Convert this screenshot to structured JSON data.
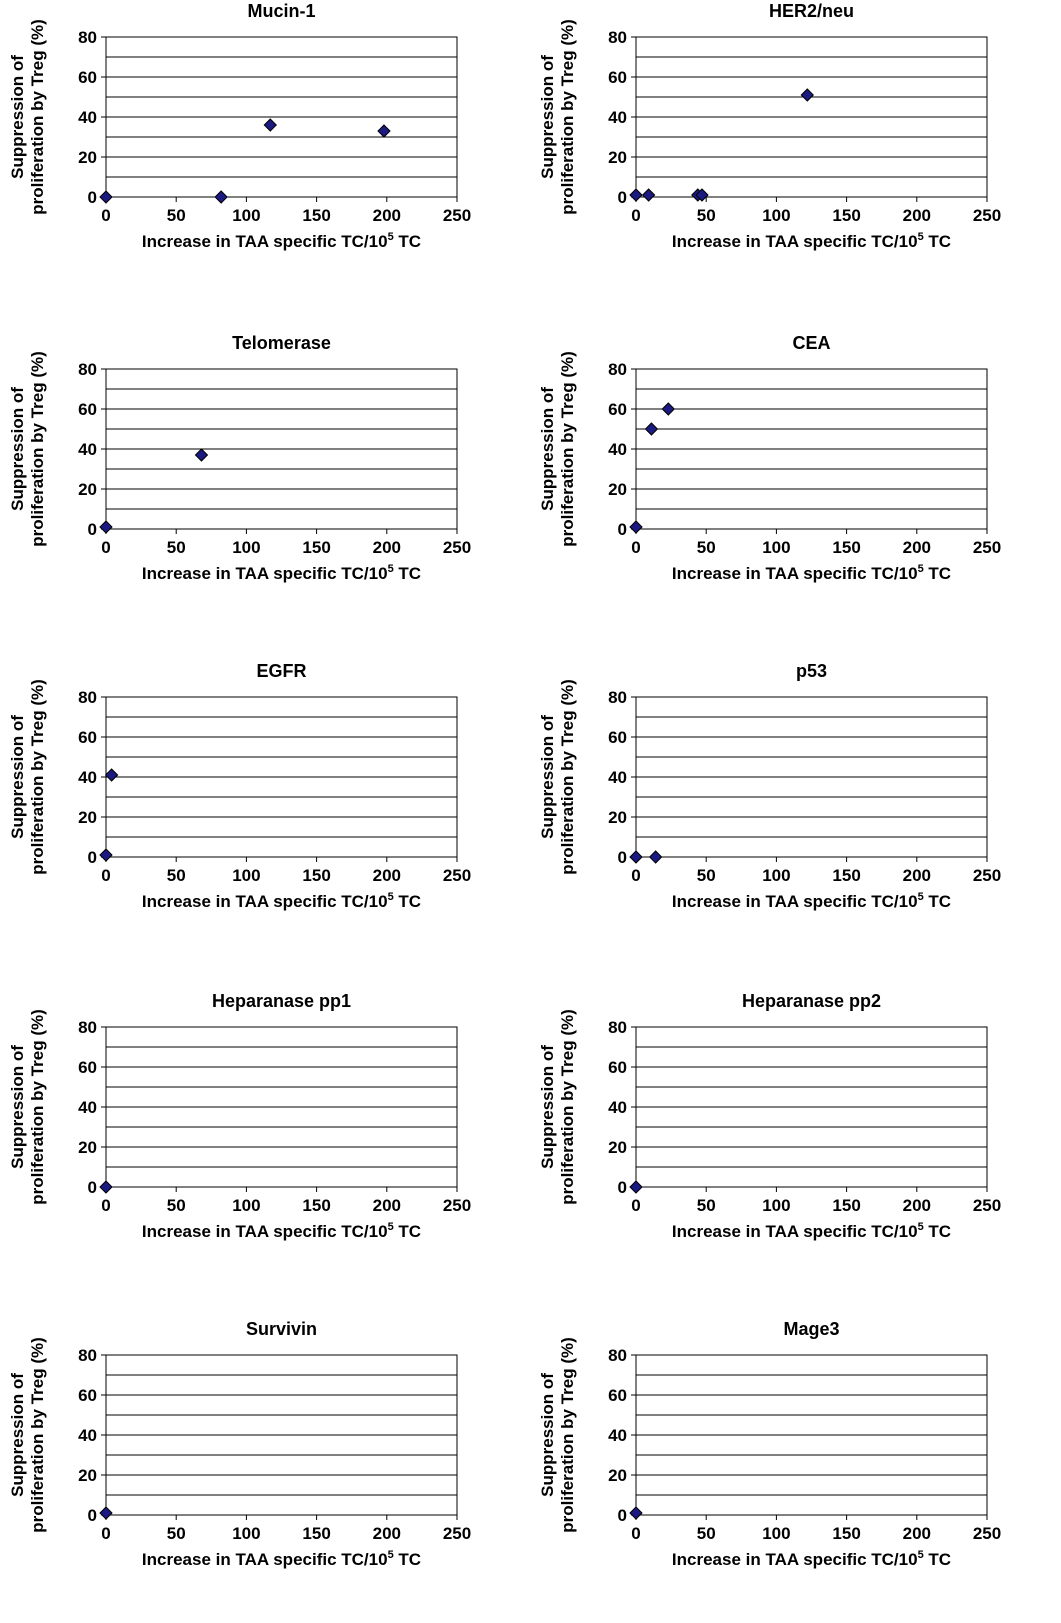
{
  "chart_data": [
    {
      "type": "scatter",
      "title": "Mucin-1",
      "xlabel_main": "Increase in TAA specific TC/10",
      "xlabel_sup": "5",
      "xlabel_tail": " TC",
      "ylabel_line1": "Suppression of",
      "ylabel_line2": "proliferation by Treg (%)",
      "xlim": [
        0,
        250
      ],
      "ylim": [
        0,
        80
      ],
      "xticks": [
        "0",
        "50",
        "100",
        "150",
        "200",
        "250"
      ],
      "yticks": [
        "0",
        "20",
        "40",
        "60",
        "80"
      ],
      "grid": "horizontal every 10",
      "points": [
        {
          "x": 0,
          "y": 0
        },
        {
          "x": 82,
          "y": 0
        },
        {
          "x": 117,
          "y": 36
        },
        {
          "x": 198,
          "y": 33
        }
      ]
    },
    {
      "type": "scatter",
      "title": "HER2/neu",
      "xlabel_main": "Increase in TAA specific TC/10",
      "xlabel_sup": "5",
      "xlabel_tail": " TC",
      "ylabel_line1": "Suppression of",
      "ylabel_line2": "proliferation by Treg (%)",
      "xlim": [
        0,
        250
      ],
      "ylim": [
        0,
        80
      ],
      "xticks": [
        "0",
        "50",
        "100",
        "150",
        "200",
        "250"
      ],
      "yticks": [
        "0",
        "20",
        "40",
        "60",
        "80"
      ],
      "grid": "horizontal every 10",
      "points": [
        {
          "x": 0,
          "y": 1
        },
        {
          "x": 9,
          "y": 1
        },
        {
          "x": 44,
          "y": 1
        },
        {
          "x": 47,
          "y": 1
        },
        {
          "x": 122,
          "y": 51
        }
      ]
    },
    {
      "type": "scatter",
      "title": "Telomerase",
      "xlabel_main": "Increase in TAA specific TC/10",
      "xlabel_sup": "5",
      "xlabel_tail": " TC",
      "ylabel_line1": "Suppression of",
      "ylabel_line2": "proliferation by Treg (%)",
      "xlim": [
        0,
        250
      ],
      "ylim": [
        0,
        80
      ],
      "xticks": [
        "0",
        "50",
        "100",
        "150",
        "200",
        "250"
      ],
      "yticks": [
        "0",
        "20",
        "40",
        "60",
        "80"
      ],
      "grid": "horizontal every 10",
      "points": [
        {
          "x": 0,
          "y": 1
        },
        {
          "x": 68,
          "y": 37
        }
      ]
    },
    {
      "type": "scatter",
      "title": "CEA",
      "xlabel_main": "Increase in TAA specific TC/10",
      "xlabel_sup": "5",
      "xlabel_tail": " TC",
      "ylabel_line1": "Suppression of",
      "ylabel_line2": "proliferation by Treg (%)",
      "xlim": [
        0,
        250
      ],
      "ylim": [
        0,
        80
      ],
      "xticks": [
        "0",
        "50",
        "100",
        "150",
        "200",
        "250"
      ],
      "yticks": [
        "0",
        "20",
        "40",
        "60",
        "80"
      ],
      "grid": "horizontal every 10",
      "points": [
        {
          "x": 0,
          "y": 1
        },
        {
          "x": 11,
          "y": 50
        },
        {
          "x": 23,
          "y": 60
        }
      ]
    },
    {
      "type": "scatter",
      "title": "EGFR",
      "xlabel_main": "Increase in TAA specific TC/10",
      "xlabel_sup": "5",
      "xlabel_tail": " TC",
      "ylabel_line1": "Suppression of",
      "ylabel_line2": "proliferation by Treg (%)",
      "xlim": [
        0,
        250
      ],
      "ylim": [
        0,
        80
      ],
      "xticks": [
        "0",
        "50",
        "100",
        "150",
        "200",
        "250"
      ],
      "yticks": [
        "0",
        "20",
        "40",
        "60",
        "80"
      ],
      "grid": "horizontal every 10",
      "points": [
        {
          "x": 0,
          "y": 1
        },
        {
          "x": 4,
          "y": 41
        }
      ]
    },
    {
      "type": "scatter",
      "title": "p53",
      "xlabel_main": "Increase in TAA specific TC/10",
      "xlabel_sup": "5",
      "xlabel_tail": " TC",
      "ylabel_line1": "Suppression of",
      "ylabel_line2": "proliferation by Treg (%)",
      "xlim": [
        0,
        250
      ],
      "ylim": [
        0,
        80
      ],
      "xticks": [
        "0",
        "50",
        "100",
        "150",
        "200",
        "250"
      ],
      "yticks": [
        "0",
        "20",
        "40",
        "60",
        "80"
      ],
      "grid": "horizontal every 10",
      "points": [
        {
          "x": 0,
          "y": 0
        },
        {
          "x": 14,
          "y": 0
        }
      ]
    },
    {
      "type": "scatter",
      "title": "Heparanase pp1",
      "xlabel_main": "Increase in TAA specific TC/10",
      "xlabel_sup": "5",
      "xlabel_tail": " TC",
      "ylabel_line1": "Suppression of",
      "ylabel_line2": "proliferation by Treg (%)",
      "xlim": [
        0,
        250
      ],
      "ylim": [
        0,
        80
      ],
      "xticks": [
        "0",
        "50",
        "100",
        "150",
        "200",
        "250"
      ],
      "yticks": [
        "0",
        "20",
        "40",
        "60",
        "80"
      ],
      "grid": "horizontal every 10",
      "points": [
        {
          "x": 0,
          "y": 0
        }
      ]
    },
    {
      "type": "scatter",
      "title": "Heparanase pp2",
      "xlabel_main": "Increase in TAA specific TC/10",
      "xlabel_sup": "5",
      "xlabel_tail": " TC",
      "ylabel_line1": "Suppression of",
      "ylabel_line2": "proliferation by Treg (%)",
      "xlim": [
        0,
        250
      ],
      "ylim": [
        0,
        80
      ],
      "xticks": [
        "0",
        "50",
        "100",
        "150",
        "200",
        "250"
      ],
      "yticks": [
        "0",
        "20",
        "40",
        "60",
        "80"
      ],
      "grid": "horizontal every 10",
      "points": [
        {
          "x": 0,
          "y": 0
        }
      ]
    },
    {
      "type": "scatter",
      "title": "Survivin",
      "xlabel_main": "Increase in TAA specific TC/10",
      "xlabel_sup": "5",
      "xlabel_tail": " TC",
      "ylabel_line1": "Suppression of",
      "ylabel_line2": "proliferation by Treg (%)",
      "xlim": [
        0,
        250
      ],
      "ylim": [
        0,
        80
      ],
      "xticks": [
        "0",
        "50",
        "100",
        "150",
        "200",
        "250"
      ],
      "yticks": [
        "0",
        "20",
        "40",
        "60",
        "80"
      ],
      "grid": "horizontal every 10",
      "points": [
        {
          "x": 0,
          "y": 1
        }
      ]
    },
    {
      "type": "scatter",
      "title": "Mage3",
      "xlabel_main": "Increase in TAA specific TC/10",
      "xlabel_sup": "5",
      "xlabel_tail": " TC",
      "ylabel_line1": "Suppression of",
      "ylabel_line2": "proliferation by Treg (%)",
      "xlim": [
        0,
        250
      ],
      "ylim": [
        0,
        80
      ],
      "xticks": [
        "0",
        "50",
        "100",
        "150",
        "200",
        "250"
      ],
      "yticks": [
        "0",
        "20",
        "40",
        "60",
        "80"
      ],
      "grid": "horizontal every 10",
      "points": [
        {
          "x": 0,
          "y": 1
        }
      ]
    }
  ],
  "colors": {
    "marker": "#1a1a80",
    "axis": "#000000"
  }
}
